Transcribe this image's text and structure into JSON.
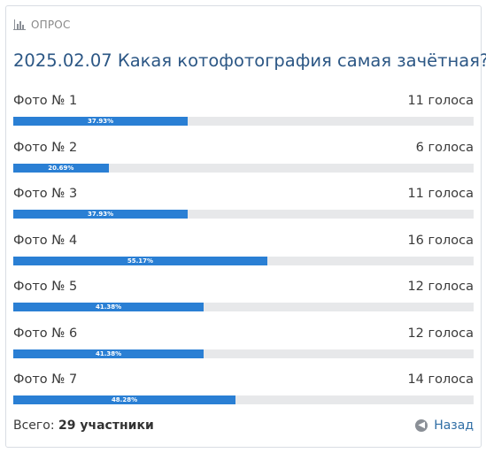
{
  "poll": {
    "label": "ОПРОС",
    "title": "2025.02.07 Какая котофотография самая зачётная?",
    "options": [
      {
        "label": "Фото № 1",
        "votes": "11 голоса",
        "percent": "37.93%",
        "fraction": 0.3793
      },
      {
        "label": "Фото № 2",
        "votes": "6 голоса",
        "percent": "20.69%",
        "fraction": 0.2069
      },
      {
        "label": "Фото № 3",
        "votes": "11 голоса",
        "percent": "37.93%",
        "fraction": 0.3793
      },
      {
        "label": "Фото № 4",
        "votes": "16 голоса",
        "percent": "55.17%",
        "fraction": 0.5517
      },
      {
        "label": "Фото № 5",
        "votes": "12 голоса",
        "percent": "41.38%",
        "fraction": 0.4138
      },
      {
        "label": "Фото № 6",
        "votes": "12 голоса",
        "percent": "41.38%",
        "fraction": 0.4138
      },
      {
        "label": "Фото № 7",
        "votes": "14 голоса",
        "percent": "48.28%",
        "fraction": 0.4828
      }
    ],
    "footer": {
      "total_label": "Всего:",
      "total_value": "29 участники",
      "back_label": "Назад"
    }
  },
  "colors": {
    "bar": "#2a7fd4",
    "track": "#e7e8ea",
    "title": "#2c5785",
    "link": "#2f6ea5"
  },
  "icons": {
    "header": "bar-chart-icon",
    "back": "circle-arrow-left-icon"
  }
}
